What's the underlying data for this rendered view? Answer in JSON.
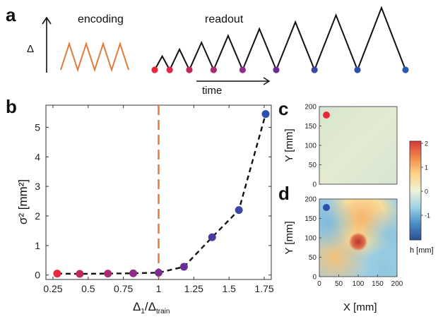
{
  "panels": {
    "a": "a",
    "b": "b",
    "c": "c",
    "d": "d"
  },
  "panel_a": {
    "encoding_label": "encoding",
    "readout_label": "readout",
    "delta_label": "Δ",
    "time_label": "time",
    "encoding_color": "#e07b39",
    "encoding_peaks": 4,
    "readout_amplitudes": [
      0.22,
      0.33,
      0.44,
      0.55,
      0.66,
      0.77,
      0.88,
      1.0
    ],
    "marker_colors": [
      "#e8283a",
      "#e0284a",
      "#c0275f",
      "#a82b72",
      "#8f2d86",
      "#6a2d96",
      "#3a47a8",
      "#2f4fae",
      "#2c58b5"
    ]
  },
  "chart_data": {
    "type": "scatter",
    "xlabel_main": "Δ",
    "xlabel_sub1": "1",
    "xlabel_sep": "/Δ",
    "xlabel_sub2": "train",
    "ylabel": "σ² [mm²]",
    "xlim": [
      0.2,
      1.8
    ],
    "ylim": [
      -0.15,
      5.75
    ],
    "xticks": [
      0.25,
      0.5,
      0.75,
      1,
      1.25,
      1.5,
      1.75
    ],
    "yticks": [
      0,
      1,
      2,
      3,
      4,
      5
    ],
    "xticklabels": [
      "0.25",
      "0.5",
      "0.75",
      "1",
      "1.25",
      "1.5",
      "1.75"
    ],
    "yticklabels": [
      "0",
      "1",
      "2",
      "3",
      "4",
      "5"
    ],
    "x": [
      0.28,
      0.44,
      0.64,
      0.82,
      1.0,
      1.18,
      1.38,
      1.57,
      1.76
    ],
    "y": [
      0.05,
      0.04,
      0.05,
      0.06,
      0.08,
      0.28,
      1.28,
      2.2,
      5.45
    ],
    "point_colors": [
      "#e8283a",
      "#c0275f",
      "#a82b72",
      "#8f2d86",
      "#7a2e8f",
      "#6a2d96",
      "#4a3aa0",
      "#3a47a8",
      "#2f4fae"
    ],
    "reference_line_x": 1,
    "reference_line_color": "#e07b39",
    "fit_line_color": "#111111"
  },
  "panel_c": {
    "ylabel": "Y [mm]",
    "yticklabels": [
      "0",
      "50",
      "100",
      "150",
      "200"
    ],
    "marker_color": "#e8283a",
    "field_color": "#dde8d0"
  },
  "panel_d": {
    "ylabel": "Y [mm]",
    "xlabel": "X [mm]",
    "yticklabels": [
      "0",
      "50",
      "100",
      "150",
      "200"
    ],
    "xticklabels": [
      "0",
      "50",
      "100",
      "150",
      "200"
    ],
    "marker_color": "#2f4fae"
  },
  "colorbar": {
    "label": "h [mm]",
    "ticklabels": [
      "2",
      "1",
      "0",
      "-1"
    ],
    "colors": [
      "#d4393a",
      "#f08a4b",
      "#fcd48a",
      "#eef2d8",
      "#9fd2e6",
      "#4a8fc6",
      "#2b4e93"
    ]
  }
}
